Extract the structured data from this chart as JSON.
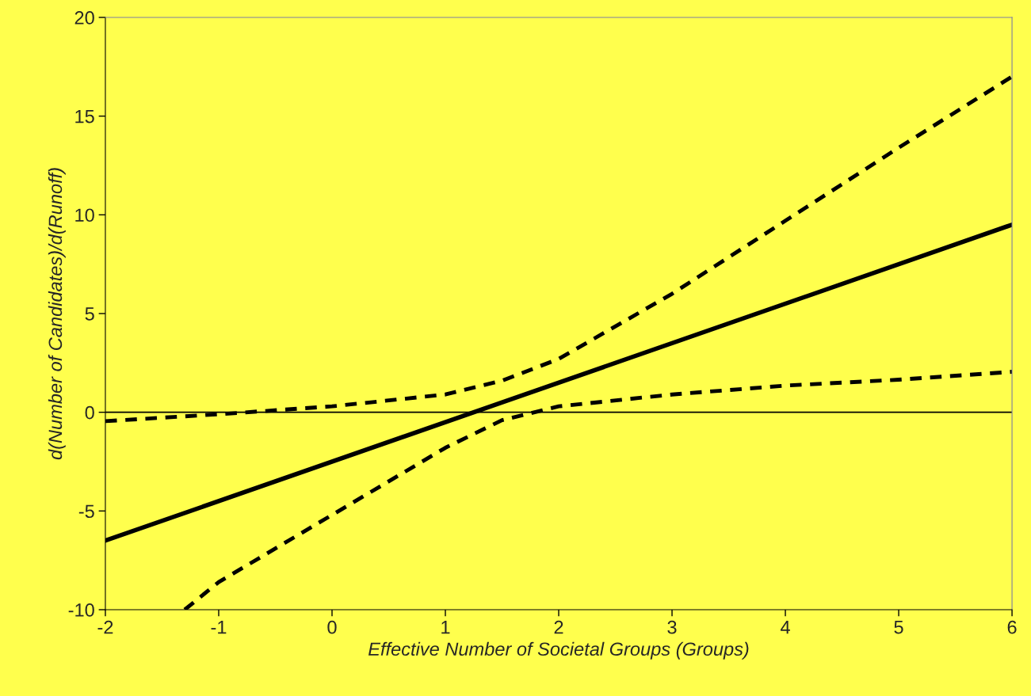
{
  "chart_data": {
    "type": "line",
    "xlabel": "Effective Number of Societal Groups (Groups)",
    "ylabel": "d(Number of Candidates)/d(Runoff)",
    "xlim": [
      -2,
      6
    ],
    "xticks": [
      -2,
      -1,
      0,
      1,
      2,
      3,
      4,
      5,
      6
    ],
    "ylim": [
      -10,
      20
    ],
    "yticks": [
      -10,
      -5,
      0,
      5,
      10,
      15,
      20
    ],
    "grid": false,
    "legend": false,
    "ref_lines": [
      {
        "axis": "y",
        "value": 0,
        "color": "#000000",
        "line_style": "solid"
      }
    ],
    "series": [
      {
        "color": "#000000",
        "line_style": "solid",
        "x": [
          -2,
          6
        ],
        "values": [
          -6.5,
          9.5
        ]
      },
      {
        "color": "#000000",
        "line_style": "dashed",
        "x": [
          -2,
          -1,
          0,
          1,
          1.5,
          2,
          3,
          4,
          5,
          6
        ],
        "values": [
          -0.45,
          -0.1,
          0.3,
          0.9,
          1.6,
          2.7,
          6,
          9.7,
          13.4,
          17
        ]
      },
      {
        "color": "#000000",
        "line_style": "dashed",
        "x": [
          -1.3,
          -1,
          0,
          1,
          1.5,
          2,
          3,
          4,
          5,
          6
        ],
        "values": [
          -10,
          -8.6,
          -5.2,
          -1.8,
          -0.4,
          0.3,
          0.9,
          1.35,
          1.65,
          2.05
        ]
      }
    ]
  }
}
